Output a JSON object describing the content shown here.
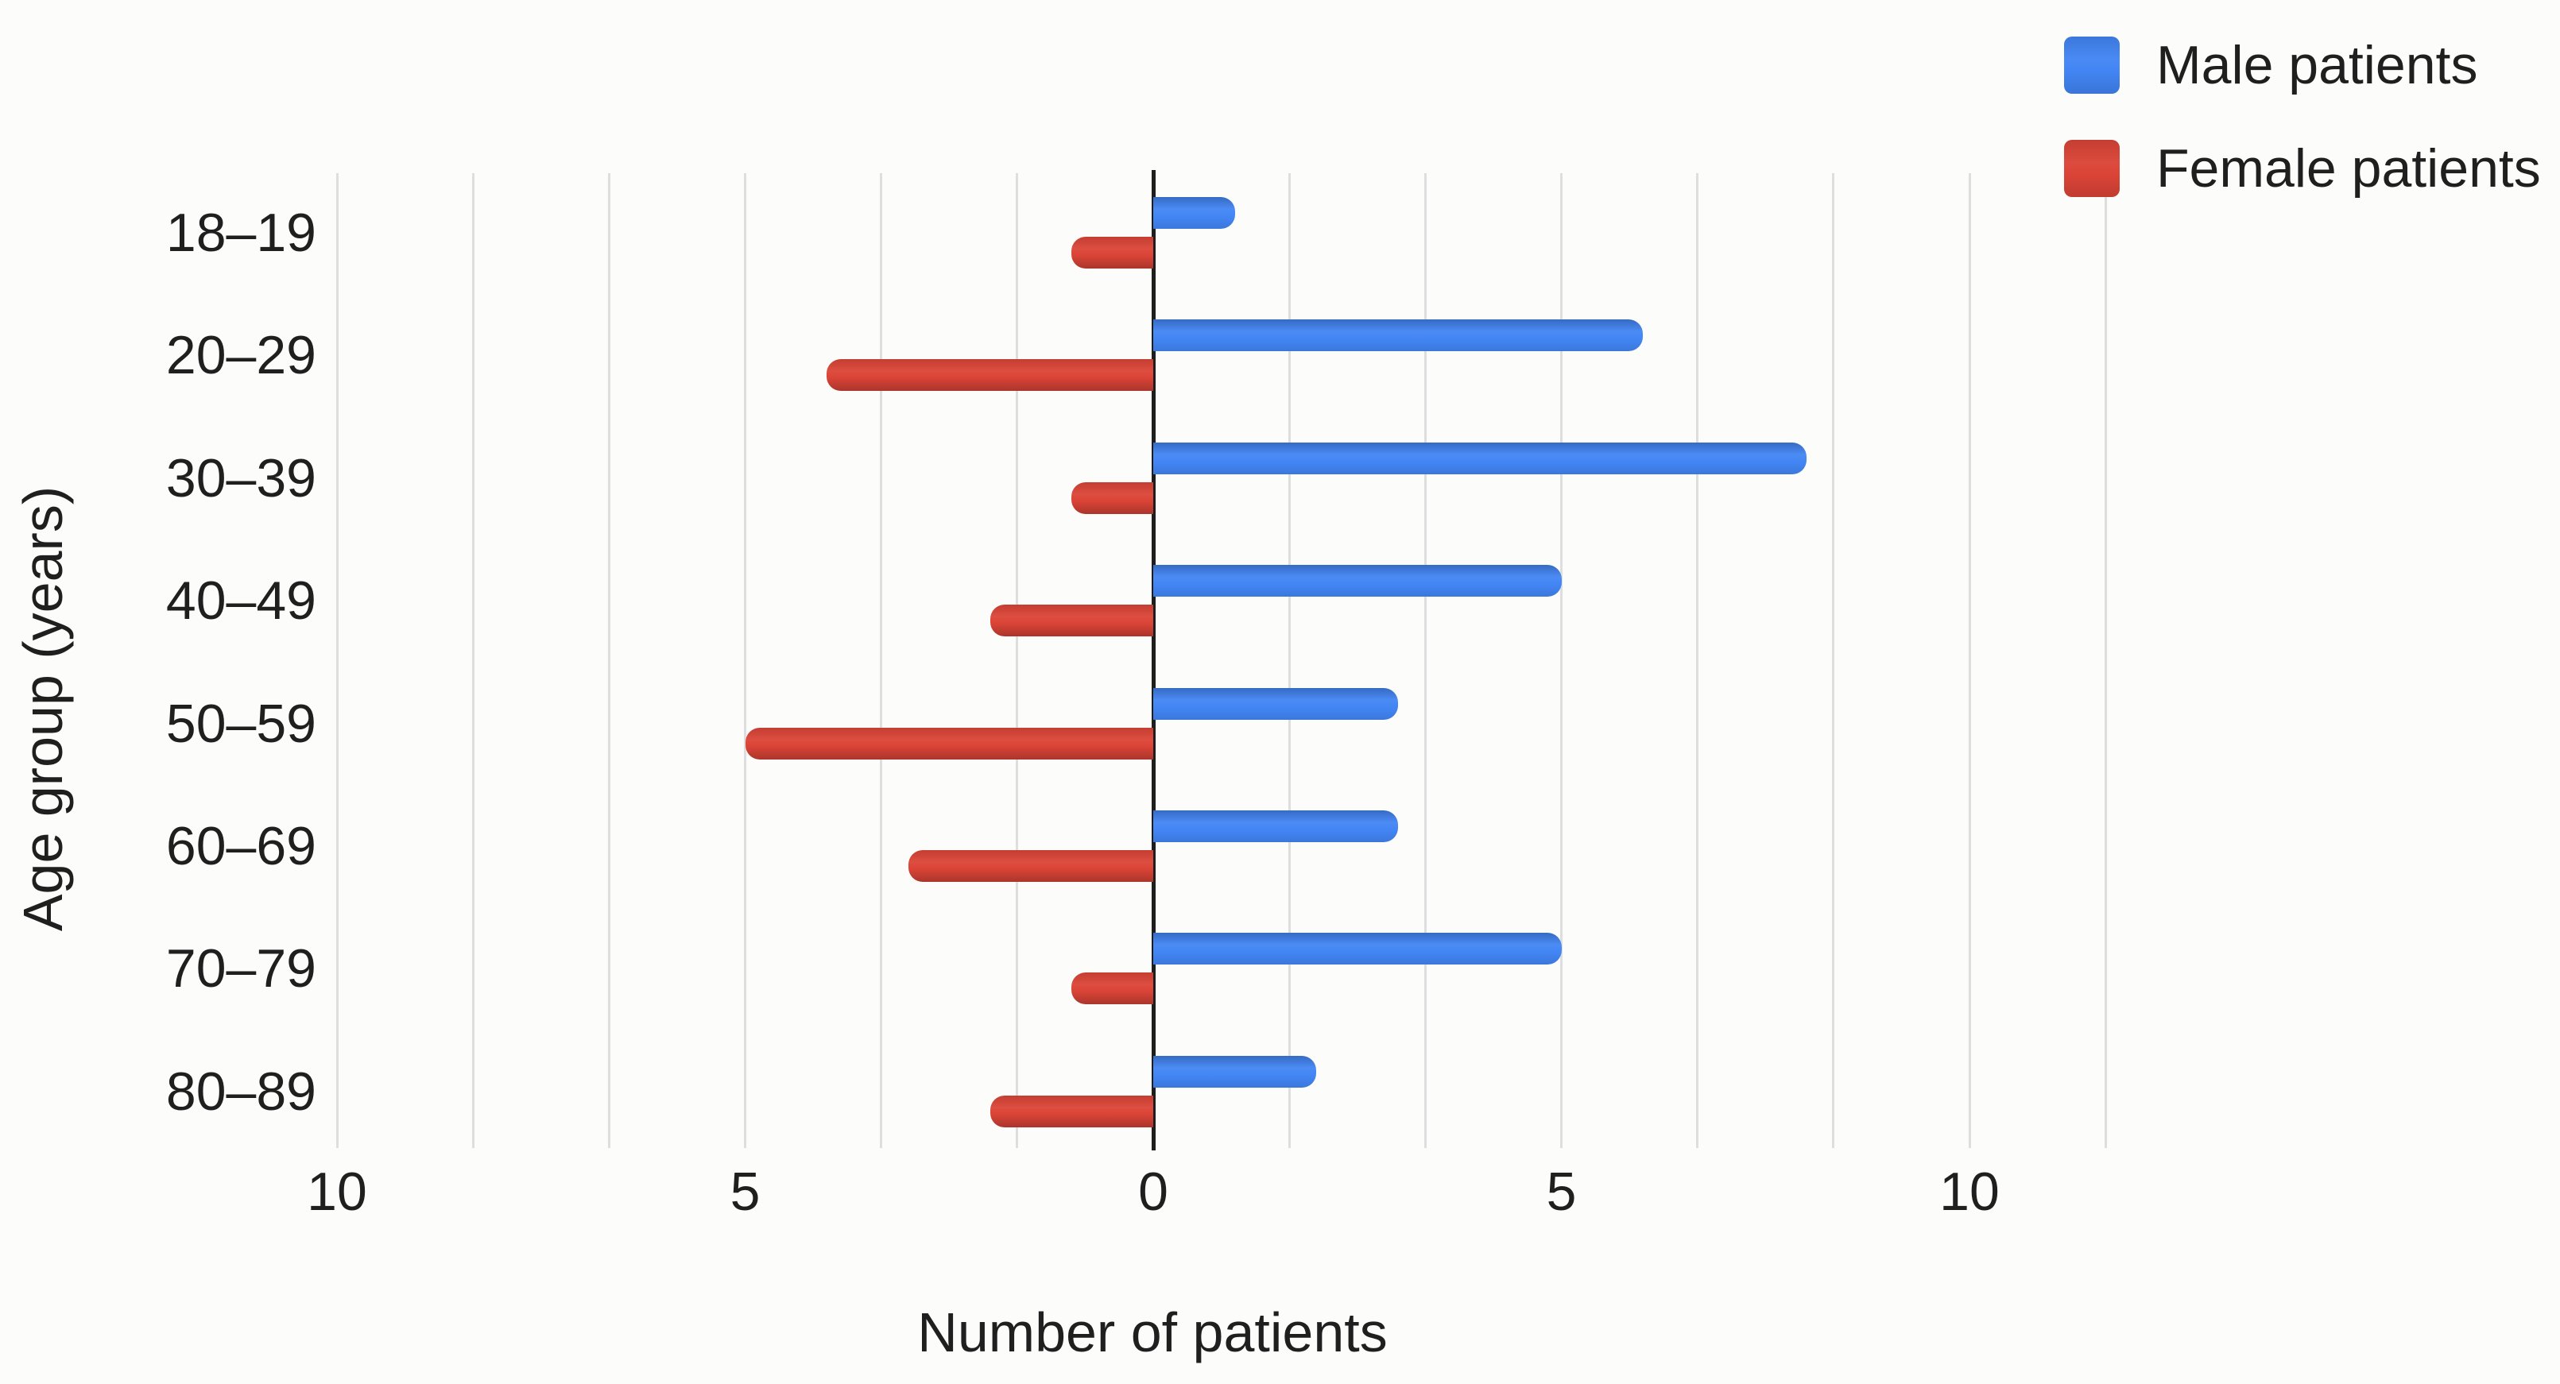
{
  "chart_data": {
    "type": "bar",
    "subtype": "diverging-horizontal-age-sex-pyramid",
    "title": "",
    "categories": [
      "18–19",
      "20–29",
      "30–39",
      "40–49",
      "50–59",
      "60–69",
      "70–79",
      "80–89"
    ],
    "series": [
      {
        "name": "Male patients",
        "color": "#4285F4",
        "side": "right",
        "values": [
          1,
          6,
          8,
          5,
          3,
          3,
          5,
          2
        ]
      },
      {
        "name": "Female patients",
        "color": "#DB4437",
        "side": "left",
        "values": [
          1,
          4,
          1,
          2,
          5,
          3,
          1,
          2
        ]
      }
    ],
    "xlabel": "Number of patients",
    "ylabel": "Age group (years)",
    "x_ticks": [
      -10,
      -5,
      0,
      5,
      10
    ],
    "x_tick_labels": [
      "10",
      "5",
      "0",
      "5",
      "10"
    ],
    "xlim": [
      -10,
      11.667
    ],
    "grid": {
      "vertical": true,
      "line_spacing": 1.6667,
      "color": "#DEDEDE",
      "zero_axis_color": "#1E1E1E"
    },
    "legend_position": "top-right",
    "text_color": "#1F1F1F",
    "background_color": "#FCFCFB"
  }
}
